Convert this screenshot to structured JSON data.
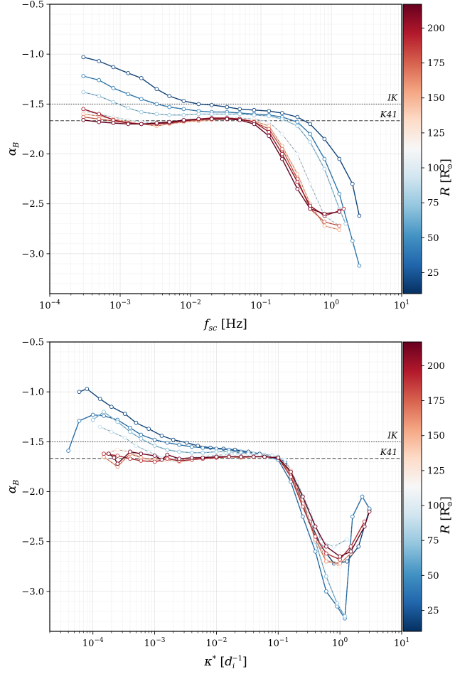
{
  "chart_data": [
    {
      "type": "line",
      "xlabel_var": "f",
      "xlabel_sub": "sc",
      "xlabel_unit": " [Hz]",
      "ylabel_var": "α",
      "ylabel_sub": "B",
      "xscale": "log",
      "xlim": [
        0.0001,
        10
      ],
      "ylim": [
        -3.4,
        -0.5
      ],
      "xticks": [
        {
          "value": 0.0001,
          "base": "10",
          "exp": "−4"
        },
        {
          "value": 0.001,
          "base": "10",
          "exp": "−3"
        },
        {
          "value": 0.01,
          "base": "10",
          "exp": "−2"
        },
        {
          "value": 0.1,
          "base": "10",
          "exp": "−1"
        },
        {
          "value": 1,
          "base": "10",
          "exp": "0"
        },
        {
          "value": 10,
          "base": "10",
          "exp": "1"
        }
      ],
      "yticks": [
        "−3.0",
        "−2.5",
        "−2.0",
        "−1.5",
        "−1.0",
        "−0.5"
      ],
      "ytick_values": [
        -3.0,
        -2.5,
        -2.0,
        -1.5,
        -1.0,
        -0.5
      ],
      "grid": true,
      "reference_lines": [
        {
          "label": "IK",
          "y": -1.5,
          "style": "dotted"
        },
        {
          "label": "K41",
          "y": -1.667,
          "style": "dashed"
        }
      ],
      "series": [
        {
          "R": 20,
          "x": [
            0.0003,
            0.0005,
            0.0008,
            0.0013,
            0.002,
            0.0033,
            0.005,
            0.008,
            0.013,
            0.02,
            0.033,
            0.05,
            0.08,
            0.13,
            0.2,
            0.33,
            0.5,
            0.8,
            1.3,
            2,
            2.5
          ],
          "y": [
            -1.03,
            -1.07,
            -1.13,
            -1.19,
            -1.24,
            -1.35,
            -1.42,
            -1.47,
            -1.5,
            -1.51,
            -1.53,
            -1.55,
            -1.56,
            -1.57,
            -1.59,
            -1.63,
            -1.7,
            -1.85,
            -2.05,
            -2.3,
            -2.62
          ]
        },
        {
          "R": 45,
          "x": [
            0.0003,
            0.0005,
            0.0008,
            0.0013,
            0.002,
            0.0033,
            0.005,
            0.008,
            0.013,
            0.02,
            0.033,
            0.05,
            0.08,
            0.13,
            0.2,
            0.33,
            0.5,
            0.8,
            1.3,
            2,
            2.5
          ],
          "y": [
            -1.22,
            -1.26,
            -1.34,
            -1.4,
            -1.45,
            -1.5,
            -1.53,
            -1.55,
            -1.57,
            -1.58,
            -1.58,
            -1.59,
            -1.6,
            -1.61,
            -1.63,
            -1.68,
            -1.8,
            -2.05,
            -2.4,
            -2.87,
            -3.12
          ]
        },
        {
          "R": 75,
          "x": [
            0.0003,
            0.0005,
            0.0008,
            0.0013,
            0.002,
            0.0033,
            0.005,
            0.008,
            0.013,
            0.02,
            0.033,
            0.05,
            0.08,
            0.13,
            0.2,
            0.33,
            0.5,
            0.8,
            1.3,
            1.6
          ],
          "y": [
            -1.38,
            -1.42,
            -1.48,
            -1.54,
            -1.58,
            -1.6,
            -1.61,
            -1.61,
            -1.6,
            -1.6,
            -1.6,
            -1.6,
            -1.61,
            -1.62,
            -1.65,
            -1.72,
            -1.88,
            -2.15,
            -2.55,
            -2.7
          ]
        },
        {
          "R": 100,
          "x": [
            0.0003,
            0.0005,
            0.0008,
            0.0013,
            0.002,
            0.0033,
            0.005,
            0.008,
            0.013,
            0.02,
            0.033,
            0.05,
            0.08,
            0.13,
            0.2,
            0.33,
            0.5,
            0.8,
            1.3
          ],
          "y": [
            -1.57,
            -1.6,
            -1.63,
            -1.66,
            -1.68,
            -1.69,
            -1.68,
            -1.67,
            -1.66,
            -1.65,
            -1.64,
            -1.64,
            -1.65,
            -1.68,
            -1.8,
            -2.0,
            -2.3,
            -2.62,
            -2.72
          ]
        },
        {
          "R": 150,
          "x": [
            0.0003,
            0.0005,
            0.0008,
            0.0013,
            0.002,
            0.0033,
            0.005,
            0.008,
            0.013,
            0.02,
            0.033,
            0.05,
            0.08,
            0.13,
            0.2,
            0.33,
            0.5,
            0.8,
            1.3
          ],
          "y": [
            -1.6,
            -1.62,
            -1.65,
            -1.68,
            -1.7,
            -1.72,
            -1.7,
            -1.68,
            -1.67,
            -1.66,
            -1.65,
            -1.65,
            -1.67,
            -1.72,
            -1.92,
            -2.2,
            -2.5,
            -2.72,
            -2.76
          ]
        },
        {
          "R": 175,
          "x": [
            0.0003,
            0.0005,
            0.0008,
            0.0013,
            0.002,
            0.0033,
            0.005,
            0.008,
            0.013,
            0.02,
            0.033,
            0.05,
            0.08,
            0.13,
            0.2,
            0.33,
            0.5,
            0.8,
            1.3
          ],
          "y": [
            -1.63,
            -1.65,
            -1.67,
            -1.69,
            -1.7,
            -1.7,
            -1.69,
            -1.67,
            -1.66,
            -1.65,
            -1.65,
            -1.65,
            -1.68,
            -1.75,
            -1.95,
            -2.25,
            -2.55,
            -2.68,
            -2.72
          ]
        },
        {
          "R": 200,
          "x": [
            0.0003,
            0.0005,
            0.0008,
            0.0013,
            0.002,
            0.0033,
            0.005,
            0.008,
            0.013,
            0.02,
            0.033,
            0.05,
            0.08,
            0.13,
            0.2,
            0.33,
            0.5,
            0.8,
            1.3,
            1.5
          ],
          "y": [
            -1.55,
            -1.6,
            -1.66,
            -1.69,
            -1.7,
            -1.7,
            -1.69,
            -1.67,
            -1.65,
            -1.64,
            -1.64,
            -1.65,
            -1.68,
            -1.78,
            -2.0,
            -2.28,
            -2.52,
            -2.62,
            -2.57,
            -2.55
          ]
        },
        {
          "R": 215,
          "x": [
            0.0003,
            0.0005,
            0.0008,
            0.0013,
            0.002,
            0.0033,
            0.005,
            0.008,
            0.013,
            0.02,
            0.033,
            0.05,
            0.08,
            0.13,
            0.2,
            0.33,
            0.5,
            0.8,
            1.3
          ],
          "y": [
            -1.66,
            -1.68,
            -1.69,
            -1.7,
            -1.7,
            -1.69,
            -1.68,
            -1.66,
            -1.65,
            -1.65,
            -1.65,
            -1.66,
            -1.7,
            -1.82,
            -2.05,
            -2.35,
            -2.55,
            -2.6,
            -2.58
          ]
        }
      ]
    },
    {
      "type": "line",
      "xlabel_var": "κ",
      "xlabel_sup": "*",
      "xlabel_unit_pre": " [",
      "xlabel_unit_var": "d",
      "xlabel_unit_sub": "i",
      "xlabel_unit_sup": "−1",
      "xlabel_unit_post": "]",
      "ylabel_var": "α",
      "ylabel_sub": "B",
      "xscale": "log",
      "xlim": [
        2e-05,
        10
      ],
      "ylim": [
        -3.4,
        -0.5
      ],
      "xticks": [
        {
          "value": 0.0001,
          "base": "10",
          "exp": "−4"
        },
        {
          "value": 0.001,
          "base": "10",
          "exp": "−3"
        },
        {
          "value": 0.01,
          "base": "10",
          "exp": "−2"
        },
        {
          "value": 0.1,
          "base": "10",
          "exp": "−1"
        },
        {
          "value": 1,
          "base": "10",
          "exp": "0"
        },
        {
          "value": 10,
          "base": "10",
          "exp": "1"
        }
      ],
      "yticks": [
        "−3.0",
        "−2.5",
        "−2.0",
        "−1.5",
        "−1.0",
        "−0.5"
      ],
      "ytick_values": [
        -3.0,
        -2.5,
        -2.0,
        -1.5,
        -1.0,
        -0.5
      ],
      "grid": true,
      "reference_lines": [
        {
          "label": "IK",
          "y": -1.5,
          "style": "dotted"
        },
        {
          "label": "K41",
          "y": -1.667,
          "style": "dashed"
        }
      ],
      "series": [
        {
          "R": 20,
          "x": [
            6e-05,
            8e-05,
            0.00013,
            0.0002,
            0.00033,
            0.0005,
            0.0008,
            0.0013,
            0.002,
            0.0033,
            0.005,
            0.008,
            0.013,
            0.02,
            0.033,
            0.05,
            0.08,
            0.13,
            0.2,
            0.33,
            0.5,
            0.8,
            1.3,
            2,
            3
          ],
          "y": [
            -1.0,
            -0.97,
            -1.07,
            -1.15,
            -1.22,
            -1.31,
            -1.37,
            -1.44,
            -1.48,
            -1.51,
            -1.54,
            -1.56,
            -1.57,
            -1.58,
            -1.6,
            -1.62,
            -1.64,
            -1.7,
            -1.95,
            -2.3,
            -2.55,
            -2.72,
            -2.7,
            -2.55,
            -2.18
          ]
        },
        {
          "R": 40,
          "x": [
            4e-05,
            6e-05,
            0.0001,
            0.00015,
            0.00025,
            0.0004,
            0.0006,
            0.001,
            0.0016,
            0.0025,
            0.004,
            0.006,
            0.01,
            0.016,
            0.025,
            0.04,
            0.06,
            0.1,
            0.16,
            0.25,
            0.4,
            0.6,
            0.9,
            1.2,
            1.6,
            2.3,
            3
          ],
          "y": [
            -1.59,
            -1.29,
            -1.23,
            -1.24,
            -1.28,
            -1.36,
            -1.43,
            -1.48,
            -1.51,
            -1.53,
            -1.55,
            -1.56,
            -1.57,
            -1.58,
            -1.6,
            -1.62,
            -1.64,
            -1.68,
            -1.9,
            -2.25,
            -2.6,
            -3.0,
            -3.15,
            -3.27,
            -2.25,
            -2.05,
            -2.17
          ]
        },
        {
          "R": 70,
          "x": [
            0.0001,
            0.00015,
            0.00025,
            0.0004,
            0.0006,
            0.001,
            0.0016,
            0.0025,
            0.004,
            0.006,
            0.01,
            0.016,
            0.025,
            0.04,
            0.06,
            0.1,
            0.16,
            0.25,
            0.4,
            0.6,
            0.9,
            1.2
          ],
          "y": [
            -1.28,
            -1.2,
            -1.3,
            -1.4,
            -1.47,
            -1.54,
            -1.58,
            -1.6,
            -1.61,
            -1.61,
            -1.6,
            -1.6,
            -1.61,
            -1.62,
            -1.63,
            -1.65,
            -1.78,
            -2.05,
            -2.5,
            -2.85,
            -3.12,
            -3.25
          ]
        },
        {
          "R": 90,
          "x": [
            0.00013,
            0.0002,
            0.00033,
            0.0005,
            0.0008,
            0.0013,
            0.002,
            0.0033,
            0.005,
            0.008,
            0.013,
            0.02,
            0.033,
            0.05,
            0.08,
            0.13,
            0.2,
            0.33,
            0.5,
            0.8,
            1.3
          ],
          "y": [
            -1.35,
            -1.4,
            -1.46,
            -1.54,
            -1.6,
            -1.66,
            -1.68,
            -1.68,
            -1.66,
            -1.64,
            -1.63,
            -1.62,
            -1.62,
            -1.63,
            -1.64,
            -1.68,
            -1.9,
            -2.2,
            -2.5,
            -2.55,
            -2.48
          ]
        },
        {
          "R": 130,
          "x": [
            0.00015,
            0.00025,
            0.0004,
            0.0006,
            0.001,
            0.0016,
            0.0025,
            0.004,
            0.006,
            0.01,
            0.016,
            0.025,
            0.04,
            0.06,
            0.1,
            0.16,
            0.25,
            0.4,
            0.6,
            1.0
          ],
          "y": [
            -1.62,
            -1.58,
            -1.6,
            -1.66,
            -1.7,
            -1.69,
            -1.68,
            -1.67,
            -1.66,
            -1.66,
            -1.65,
            -1.65,
            -1.65,
            -1.65,
            -1.66,
            -1.78,
            -2.08,
            -2.45,
            -2.68,
            -2.75
          ]
        },
        {
          "R": 160,
          "x": [
            0.00015,
            0.00025,
            0.0004,
            0.0006,
            0.001,
            0.0016,
            0.0025,
            0.004,
            0.006,
            0.01,
            0.016,
            0.025,
            0.04,
            0.06,
            0.1,
            0.16,
            0.25,
            0.4,
            0.6,
            1.0,
            1.5
          ],
          "y": [
            -1.65,
            -1.75,
            -1.62,
            -1.66,
            -1.68,
            -1.66,
            -1.7,
            -1.68,
            -1.66,
            -1.65,
            -1.65,
            -1.66,
            -1.65,
            -1.65,
            -1.66,
            -1.82,
            -2.12,
            -2.48,
            -2.7,
            -2.72,
            -2.62
          ]
        },
        {
          "R": 190,
          "x": [
            0.00015,
            0.00025,
            0.0004,
            0.0006,
            0.001,
            0.0016,
            0.0025,
            0.004,
            0.006,
            0.01,
            0.016,
            0.025,
            0.04,
            0.06,
            0.1,
            0.16,
            0.25,
            0.4,
            0.6,
            1.0,
            1.5,
            2.5
          ],
          "y": [
            -1.62,
            -1.64,
            -1.67,
            -1.69,
            -1.7,
            -1.67,
            -1.69,
            -1.68,
            -1.67,
            -1.66,
            -1.65,
            -1.65,
            -1.65,
            -1.65,
            -1.66,
            -1.85,
            -2.15,
            -2.45,
            -2.62,
            -2.68,
            -2.55,
            -2.3
          ]
        },
        {
          "R": 215,
          "x": [
            0.00018,
            0.00022,
            0.00025,
            0.0004,
            0.0006,
            0.001,
            0.0013,
            0.0016,
            0.0025,
            0.004,
            0.006,
            0.01,
            0.016,
            0.025,
            0.04,
            0.06,
            0.1,
            0.16,
            0.25,
            0.4,
            0.6,
            1.0,
            1.5,
            2.5,
            3
          ],
          "y": [
            -1.62,
            -1.66,
            -1.72,
            -1.6,
            -1.62,
            -1.64,
            -1.68,
            -1.63,
            -1.67,
            -1.66,
            -1.66,
            -1.65,
            -1.65,
            -1.65,
            -1.65,
            -1.65,
            -1.66,
            -1.8,
            -2.05,
            -2.35,
            -2.55,
            -2.65,
            -2.6,
            -2.35,
            -2.2
          ]
        }
      ]
    }
  ],
  "colorbar": {
    "label_var": "R",
    "label_unit": "R",
    "label_unit_sub": "⊙",
    "min": 10,
    "max": 217,
    "ticks": [
      "25",
      "50",
      "75",
      "100",
      "125",
      "150",
      "175",
      "200"
    ],
    "tick_values": [
      25,
      50,
      75,
      100,
      125,
      150,
      175,
      200
    ],
    "colormap": [
      "#053061",
      "#2166ac",
      "#4393c3",
      "#92c5de",
      "#d1e5f0",
      "#f7f7f7",
      "#fddbc7",
      "#f4a582",
      "#d6604d",
      "#b2182b",
      "#67001f"
    ]
  }
}
